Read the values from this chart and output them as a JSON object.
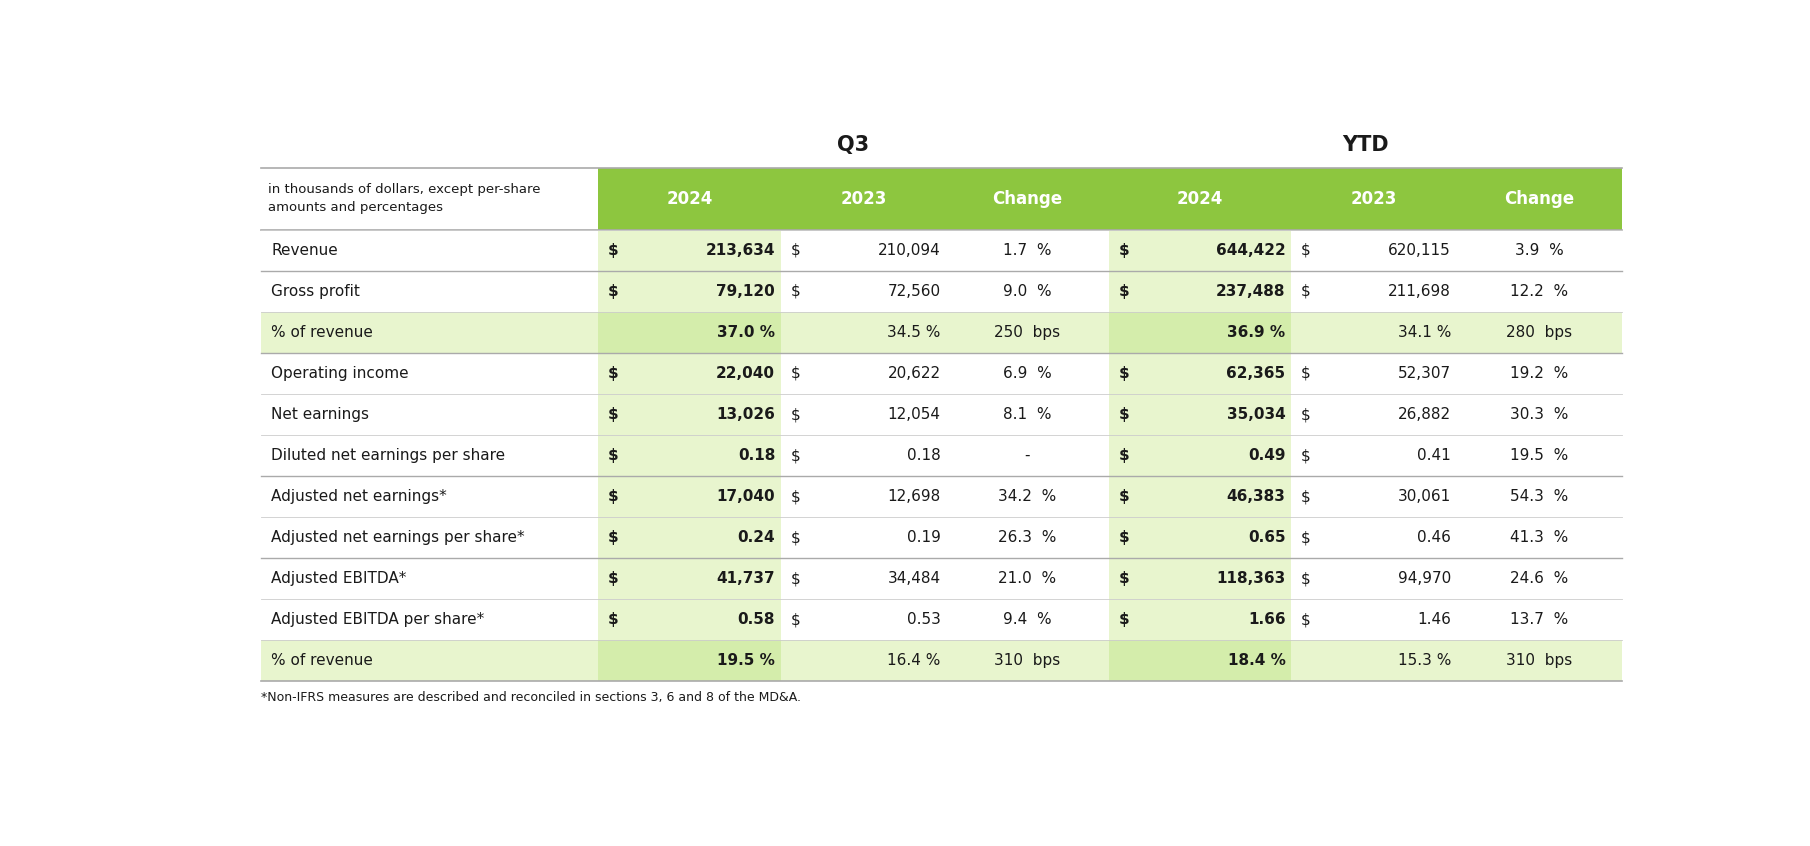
{
  "title_q3": "Q3",
  "title_ytd": "YTD",
  "header_note_line1": "in thousands of dollars, except per-share",
  "header_note_line2": "amounts and percentages",
  "footnote": "*Non-IFRS measures are described and reconciled in sections 3, 6 and 8 of the MD&A.",
  "col_headers": [
    "2024",
    "2023",
    "Change",
    "2024",
    "2023",
    "Change"
  ],
  "rows": [
    {
      "label": "Revenue",
      "q3_2024": [
        "$",
        "213,634"
      ],
      "q3_2023": [
        "$",
        "210,094"
      ],
      "q3_chg": "1.7",
      "q3_unit": "%",
      "ytd_2024": [
        "$",
        "644,422"
      ],
      "ytd_2023": [
        "$",
        "620,115"
      ],
      "ytd_chg": "3.9",
      "ytd_unit": "%",
      "bold_2024": true,
      "shade": false,
      "separator_above": true,
      "is_pct": false
    },
    {
      "label": "Gross profit",
      "q3_2024": [
        "$",
        "79,120"
      ],
      "q3_2023": [
        "$",
        "72,560"
      ],
      "q3_chg": "9.0",
      "q3_unit": "%",
      "ytd_2024": [
        "$",
        "237,488"
      ],
      "ytd_2023": [
        "$",
        "211,698"
      ],
      "ytd_chg": "12.2",
      "ytd_unit": "%",
      "bold_2024": true,
      "shade": false,
      "separator_above": true,
      "is_pct": false
    },
    {
      "label": "% of revenue",
      "q3_2024": [
        "",
        "37.0 %"
      ],
      "q3_2023": [
        "",
        "34.5 %"
      ],
      "q3_chg": "250",
      "q3_unit": "bps",
      "ytd_2024": [
        "",
        "36.9 %"
      ],
      "ytd_2023": [
        "",
        "34.1 %"
      ],
      "ytd_chg": "280",
      "ytd_unit": "bps",
      "bold_2024": true,
      "shade": true,
      "separator_above": false,
      "is_pct": true
    },
    {
      "label": "Operating income",
      "q3_2024": [
        "$",
        "22,040"
      ],
      "q3_2023": [
        "$",
        "20,622"
      ],
      "q3_chg": "6.9",
      "q3_unit": "%",
      "ytd_2024": [
        "$",
        "62,365"
      ],
      "ytd_2023": [
        "$",
        "52,307"
      ],
      "ytd_chg": "19.2",
      "ytd_unit": "%",
      "bold_2024": true,
      "shade": false,
      "separator_above": true,
      "is_pct": false
    },
    {
      "label": "Net earnings",
      "q3_2024": [
        "$",
        "13,026"
      ],
      "q3_2023": [
        "$",
        "12,054"
      ],
      "q3_chg": "8.1",
      "q3_unit": "%",
      "ytd_2024": [
        "$",
        "35,034"
      ],
      "ytd_2023": [
        "$",
        "26,882"
      ],
      "ytd_chg": "30.3",
      "ytd_unit": "%",
      "bold_2024": true,
      "shade": false,
      "separator_above": false,
      "is_pct": false
    },
    {
      "label": "Diluted net earnings per share",
      "q3_2024": [
        "$",
        "0.18"
      ],
      "q3_2023": [
        "$",
        "0.18"
      ],
      "q3_chg": "-",
      "q3_unit": "",
      "ytd_2024": [
        "$",
        "0.49"
      ],
      "ytd_2023": [
        "$",
        "0.41"
      ],
      "ytd_chg": "19.5",
      "ytd_unit": "%",
      "bold_2024": true,
      "shade": false,
      "separator_above": false,
      "is_pct": false
    },
    {
      "label": "Adjusted net earnings*",
      "q3_2024": [
        "$",
        "17,040"
      ],
      "q3_2023": [
        "$",
        "12,698"
      ],
      "q3_chg": "34.2",
      "q3_unit": "%",
      "ytd_2024": [
        "$",
        "46,383"
      ],
      "ytd_2023": [
        "$",
        "30,061"
      ],
      "ytd_chg": "54.3",
      "ytd_unit": "%",
      "bold_2024": true,
      "shade": false,
      "separator_above": true,
      "is_pct": false
    },
    {
      "label": "Adjusted net earnings per share*",
      "q3_2024": [
        "$",
        "0.24"
      ],
      "q3_2023": [
        "$",
        "0.19"
      ],
      "q3_chg": "26.3",
      "q3_unit": "%",
      "ytd_2024": [
        "$",
        "0.65"
      ],
      "ytd_2023": [
        "$",
        "0.46"
      ],
      "ytd_chg": "41.3",
      "ytd_unit": "%",
      "bold_2024": true,
      "shade": false,
      "separator_above": false,
      "is_pct": false
    },
    {
      "label": "Adjusted EBITDA*",
      "q3_2024": [
        "$",
        "41,737"
      ],
      "q3_2023": [
        "$",
        "34,484"
      ],
      "q3_chg": "21.0",
      "q3_unit": "%",
      "ytd_2024": [
        "$",
        "118,363"
      ],
      "ytd_2023": [
        "$",
        "94,970"
      ],
      "ytd_chg": "24.6",
      "ytd_unit": "%",
      "bold_2024": true,
      "shade": false,
      "separator_above": true,
      "is_pct": false
    },
    {
      "label": "Adjusted EBITDA per share*",
      "q3_2024": [
        "$",
        "0.58"
      ],
      "q3_2023": [
        "$",
        "0.53"
      ],
      "q3_chg": "9.4",
      "q3_unit": "%",
      "ytd_2024": [
        "$",
        "1.66"
      ],
      "ytd_2023": [
        "$",
        "1.46"
      ],
      "ytd_chg": "13.7",
      "ytd_unit": "%",
      "bold_2024": true,
      "shade": false,
      "separator_above": false,
      "is_pct": false
    },
    {
      "label": "% of revenue",
      "q3_2024": [
        "",
        "19.5 %"
      ],
      "q3_2023": [
        "",
        "16.4 %"
      ],
      "q3_chg": "310",
      "q3_unit": "bps",
      "ytd_2024": [
        "",
        "18.4 %"
      ],
      "ytd_2023": [
        "",
        "15.3 %"
      ],
      "ytd_chg": "310",
      "ytd_unit": "bps",
      "bold_2024": true,
      "shade": true,
      "separator_above": false,
      "is_pct": true
    }
  ],
  "green_header_bg": "#8DC63F",
  "light_green_bg": "#E8F5CE",
  "medium_green_bg": "#D4EDAB",
  "white_bg": "#FFFFFF",
  "header_text_color": "#FFFFFF",
  "body_text_color": "#1A1A1A",
  "line_color_heavy": "#AAAAAA",
  "line_color_light": "#CCCCCC",
  "figsize": [
    18.1,
    8.46
  ]
}
